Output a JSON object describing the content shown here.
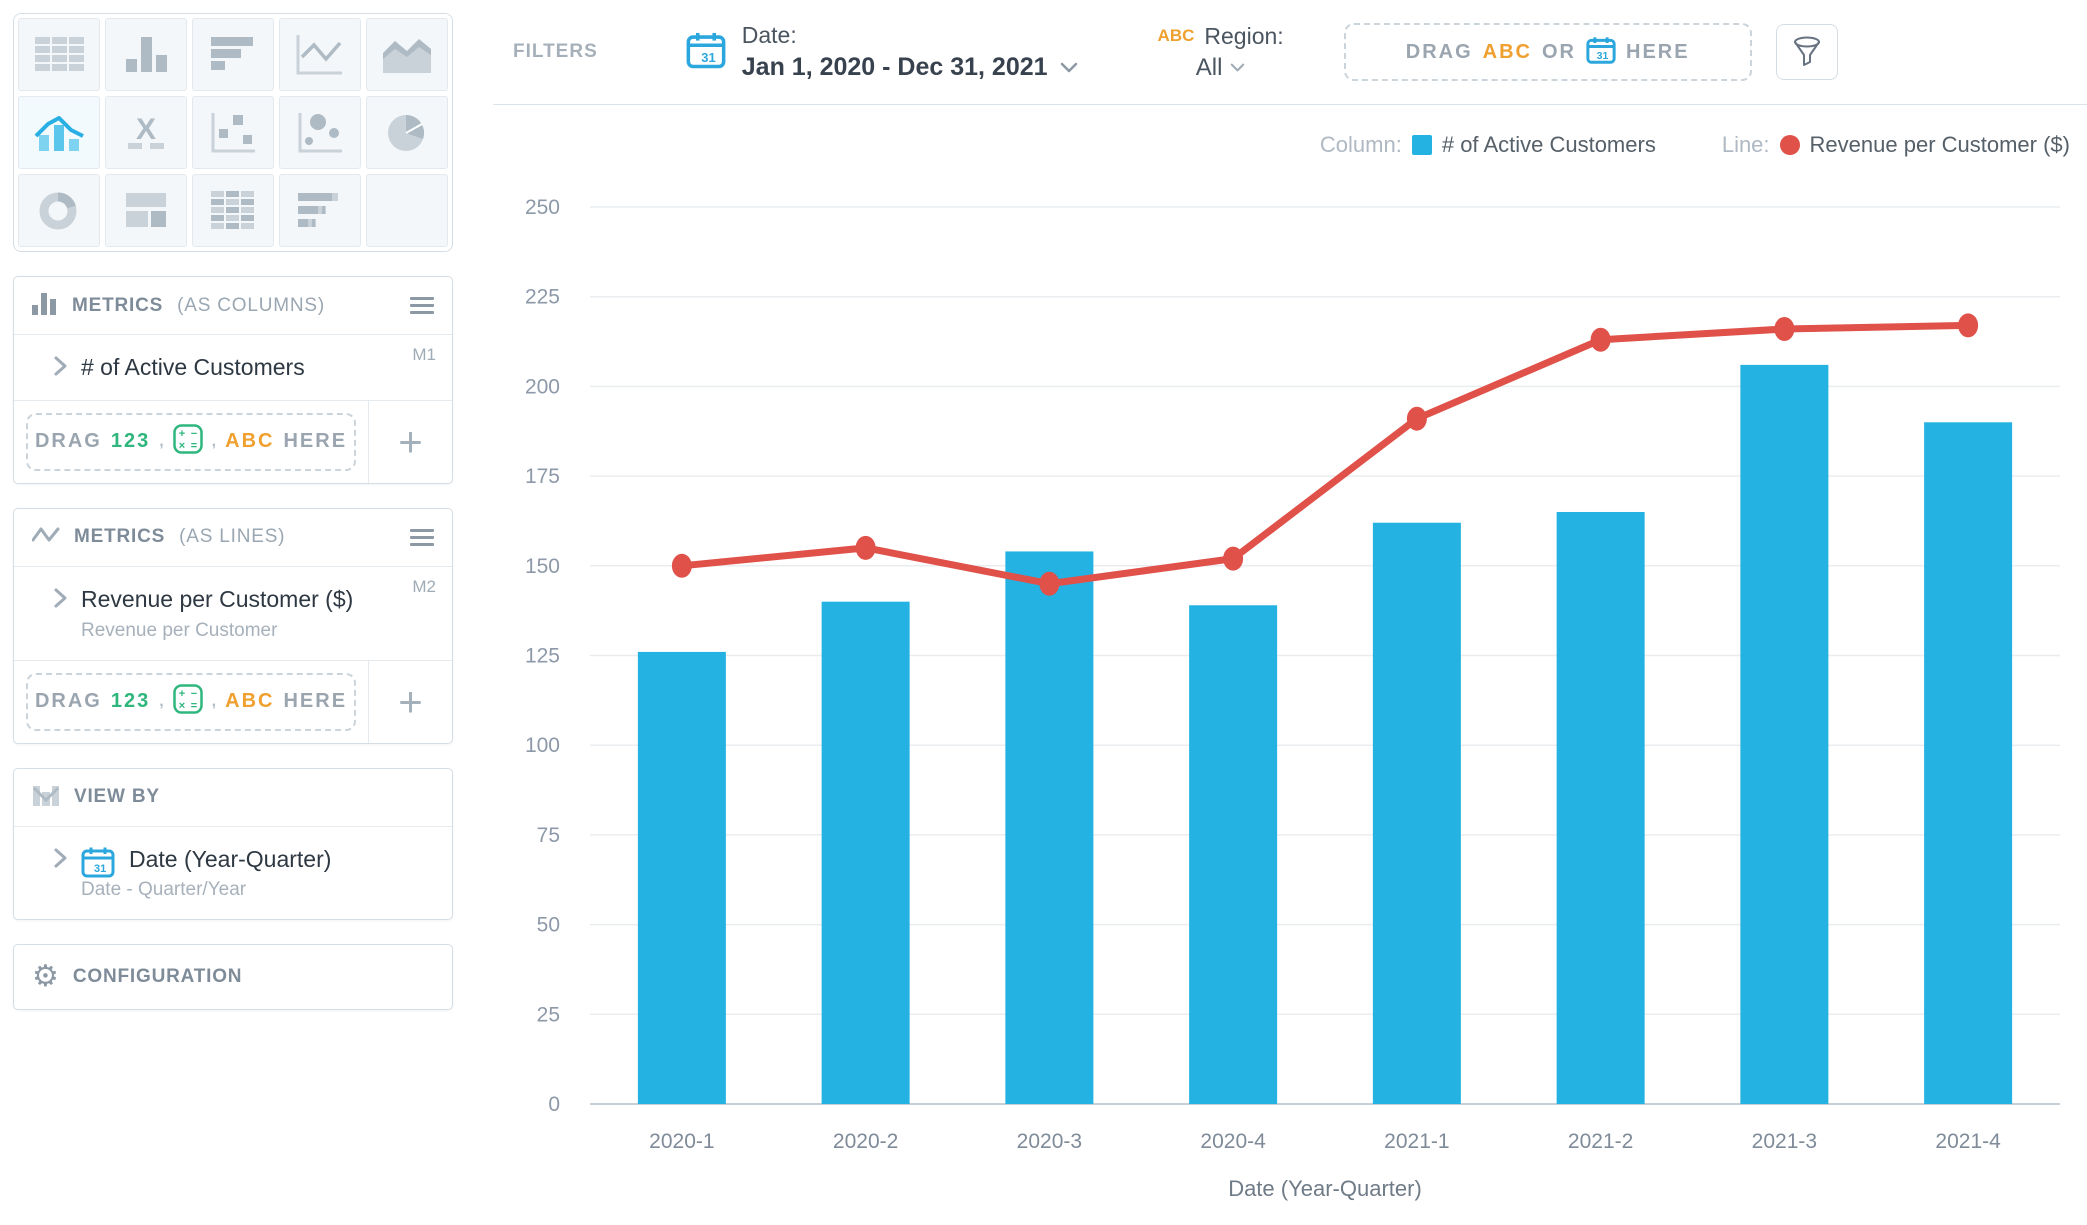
{
  "chart_picker": {
    "selected_index": 5,
    "icons": [
      "table",
      "column-chart",
      "bar-chart",
      "line-chart",
      "area-chart",
      "combo-chart",
      "x-marker-chart",
      "scatter-chart",
      "bubble-chart",
      "pie-chart",
      "donut-chart",
      "layout",
      "pivot-table",
      "bullet-chart",
      "blank"
    ]
  },
  "panels": {
    "metrics_columns": {
      "title": "METRICS",
      "qualifier": "(AS COLUMNS)",
      "metric": {
        "name": "# of Active Customers",
        "badge": "M1"
      },
      "drag": {
        "drag": "DRAG",
        "num": "123",
        "comma1": ",",
        "comma2": ",",
        "abc": "ABC",
        "here": "HERE"
      },
      "add_label": "+"
    },
    "metrics_lines": {
      "title": "METRICS",
      "qualifier": "(AS LINES)",
      "metric": {
        "name": "Revenue per Customer ($)",
        "badge": "M2",
        "subtitle": "Revenue per Customer"
      },
      "drag": {
        "drag": "DRAG",
        "num": "123",
        "comma1": ",",
        "comma2": ",",
        "abc": "ABC",
        "here": "HERE"
      },
      "add_label": "+"
    },
    "view_by": {
      "title": "VIEW BY",
      "item": {
        "name": "Date (Year-Quarter)",
        "subtitle": "Date - Quarter/Year"
      }
    },
    "configuration": {
      "title": "CONFIGURATION"
    }
  },
  "filters_bar": {
    "label": "FILTERS",
    "date_filter": {
      "label": "Date:",
      "value": "Jan 1, 2020 - Dec 31, 2021"
    },
    "region_filter": {
      "abc": "ABC",
      "label": "Region:",
      "value": "All"
    },
    "dropzone": {
      "drag": "DRAG",
      "abc": "ABC",
      "or": "OR",
      "here": "HERE"
    }
  },
  "legend": {
    "column_label": "Column:",
    "column_name": "# of Active Customers",
    "line_label": "Line:",
    "line_name": "Revenue per Customer ($)"
  },
  "colors": {
    "bar": "#23B2E1",
    "line": "#E0514A",
    "calendar_blue": "#2BA7DD",
    "green": "#2EB67D",
    "orange": "#EFA02F",
    "grid": "#E9EDF0",
    "axis": "#C7D0D7",
    "tick_text": "#8D99A8"
  },
  "chart_data": {
    "type": "combo",
    "categories": [
      "2020-1",
      "2020-2",
      "2020-3",
      "2020-4",
      "2021-1",
      "2021-2",
      "2021-3",
      "2021-4"
    ],
    "series": [
      {
        "name": "# of Active Customers",
        "type": "bar",
        "color": "#23B2E1",
        "values": [
          126,
          140,
          154,
          139,
          162,
          165,
          206,
          190
        ]
      },
      {
        "name": "Revenue per Customer ($)",
        "type": "line",
        "color": "#E0514A",
        "values": [
          150,
          155,
          145,
          152,
          191,
          213,
          216,
          217
        ]
      }
    ],
    "title": "",
    "xlabel": "Date (Year-Quarter)",
    "ylabel": "",
    "ylim": [
      0,
      250
    ],
    "ytick_step": 25,
    "grid": true,
    "legend_position": "top-right"
  }
}
